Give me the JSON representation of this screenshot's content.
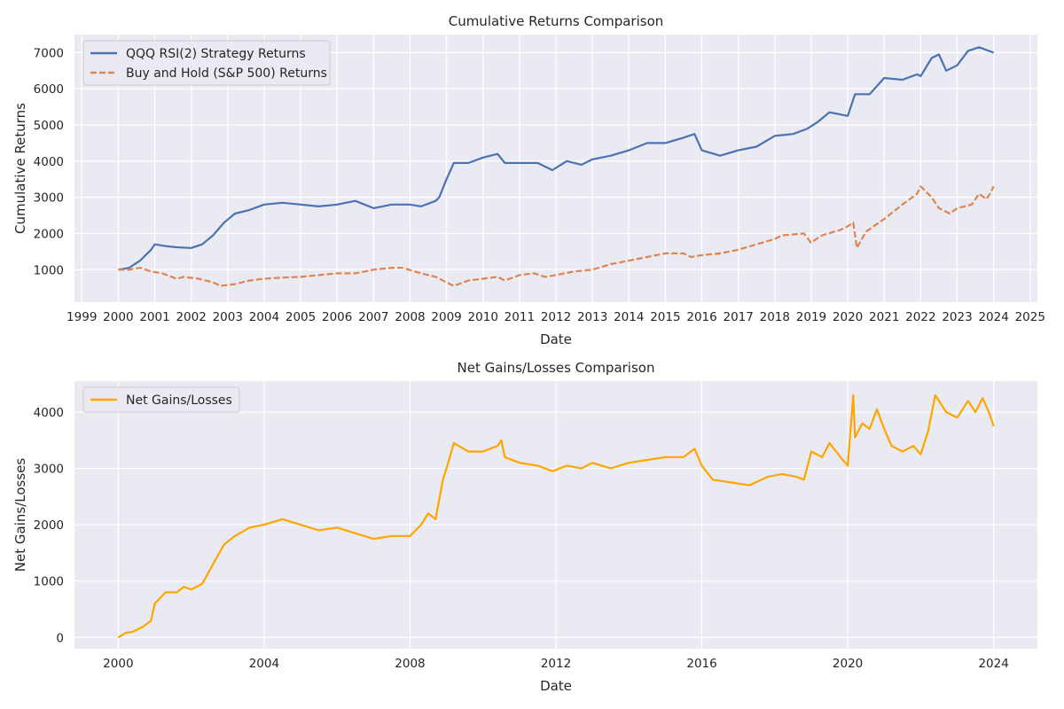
{
  "chart_data": [
    {
      "type": "line",
      "title": "Cumulative Returns Comparison",
      "xlabel": "Date",
      "ylabel": "Cumulative Returns",
      "xlim": [
        1998.8,
        2025.2
      ],
      "ylim": [
        100,
        7500
      ],
      "x_ticks": [
        1999,
        2000,
        2001,
        2002,
        2003,
        2004,
        2005,
        2006,
        2007,
        2008,
        2009,
        2010,
        2011,
        2012,
        2013,
        2014,
        2015,
        2016,
        2017,
        2018,
        2019,
        2020,
        2021,
        2022,
        2023,
        2024,
        2025
      ],
      "y_ticks": [
        1000,
        2000,
        3000,
        4000,
        5000,
        6000,
        7000
      ],
      "grid": true,
      "legend": "top-left",
      "series": [
        {
          "name": "QQQ RSI(2) Strategy Returns",
          "color": "#4c72b0",
          "style": "solid",
          "x": [
            2000.0,
            2000.3,
            2000.6,
            2000.9,
            2001.0,
            2001.3,
            2001.6,
            2002.0,
            2002.3,
            2002.6,
            2002.9,
            2003.2,
            2003.6,
            2004.0,
            2004.5,
            2005.0,
            2005.5,
            2006.0,
            2006.5,
            2007.0,
            2007.5,
            2008.0,
            2008.3,
            2008.7,
            2008.8,
            2009.0,
            2009.2,
            2009.6,
            2010.0,
            2010.4,
            2010.6,
            2011.0,
            2011.5,
            2011.9,
            2012.3,
            2012.7,
            2013.0,
            2013.5,
            2014.0,
            2014.5,
            2015.0,
            2015.5,
            2015.8,
            2016.0,
            2016.5,
            2017.0,
            2017.5,
            2018.0,
            2018.5,
            2018.9,
            2019.2,
            2019.5,
            2020.0,
            2020.2,
            2020.6,
            2021.0,
            2021.5,
            2021.9,
            2022.0,
            2022.3,
            2022.5,
            2022.7,
            2023.0,
            2023.3,
            2023.6,
            2024.0
          ],
          "y": [
            1000,
            1050,
            1250,
            1550,
            1700,
            1650,
            1620,
            1600,
            1700,
            1950,
            2300,
            2550,
            2650,
            2800,
            2850,
            2800,
            2750,
            2800,
            2900,
            2700,
            2800,
            2800,
            2750,
            2900,
            3000,
            3500,
            3950,
            3950,
            4100,
            4200,
            3950,
            3950,
            3950,
            3750,
            4000,
            3900,
            4050,
            4150,
            4300,
            4500,
            4500,
            4650,
            4750,
            4300,
            4150,
            4300,
            4400,
            4700,
            4750,
            4900,
            5100,
            5350,
            5250,
            5850,
            5850,
            6300,
            6250,
            6400,
            6350,
            6850,
            6950,
            6500,
            6650,
            7050,
            7150,
            7000
          ]
        },
        {
          "name": "Buy and Hold (S&P 500) Returns",
          "color": "#dd8452",
          "style": "dashed",
          "x": [
            2000.0,
            2000.3,
            2000.6,
            2000.9,
            2001.2,
            2001.6,
            2001.8,
            2002.2,
            2002.6,
            2002.8,
            2003.2,
            2003.6,
            2004.0,
            2004.5,
            2005.0,
            2005.5,
            2006.0,
            2006.5,
            2007.0,
            2007.5,
            2007.8,
            2008.3,
            2008.7,
            2009.0,
            2009.2,
            2009.6,
            2010.0,
            2010.4,
            2010.6,
            2011.0,
            2011.4,
            2011.7,
            2012.0,
            2012.5,
            2013.0,
            2013.5,
            2014.0,
            2014.5,
            2015.0,
            2015.5,
            2015.7,
            2016.0,
            2016.5,
            2017.0,
            2017.5,
            2018.0,
            2018.2,
            2018.8,
            2018.99,
            2019.3,
            2019.8,
            2020.0,
            2020.15,
            2020.25,
            2020.5,
            2021.0,
            2021.5,
            2021.9,
            2022.0,
            2022.3,
            2022.5,
            2022.8,
            2023.0,
            2023.4,
            2023.6,
            2023.8,
            2023.9,
            2024.0
          ],
          "y": [
            1000,
            1000,
            1050,
            950,
            900,
            750,
            800,
            750,
            650,
            550,
            600,
            700,
            750,
            780,
            800,
            850,
            900,
            900,
            1000,
            1050,
            1050,
            900,
            800,
            650,
            550,
            700,
            750,
            800,
            700,
            850,
            900,
            800,
            850,
            950,
            1000,
            1150,
            1250,
            1350,
            1450,
            1450,
            1350,
            1400,
            1450,
            1550,
            1700,
            1850,
            1950,
            2000,
            1750,
            1950,
            2100,
            2200,
            2300,
            1600,
            2050,
            2400,
            2800,
            3100,
            3300,
            3000,
            2700,
            2550,
            2700,
            2800,
            3100,
            2950,
            3100,
            3300
          ]
        }
      ]
    },
    {
      "type": "line",
      "title": "Net Gains/Losses Comparison",
      "xlabel": "Date",
      "ylabel": "Net Gains/Losses",
      "xlim": [
        1998.8,
        2025.2
      ],
      "ylim": [
        -200,
        4550
      ],
      "x_ticks": [
        2000,
        2004,
        2008,
        2012,
        2016,
        2020,
        2024
      ],
      "y_ticks": [
        0,
        1000,
        2000,
        3000,
        4000
      ],
      "grid": true,
      "legend": "top-left",
      "series": [
        {
          "name": "Net Gains/Losses",
          "color": "#ffa500",
          "style": "solid",
          "x": [
            2000.0,
            2000.2,
            2000.4,
            2000.7,
            2000.9,
            2001.0,
            2001.3,
            2001.6,
            2001.8,
            2002.0,
            2002.3,
            2002.6,
            2002.9,
            2003.2,
            2003.6,
            2004.0,
            2004.5,
            2005.0,
            2005.5,
            2006.0,
            2006.5,
            2007.0,
            2007.5,
            2008.0,
            2008.3,
            2008.5,
            2008.7,
            2008.9,
            2009.0,
            2009.2,
            2009.6,
            2010.0,
            2010.4,
            2010.5,
            2010.6,
            2011.0,
            2011.5,
            2011.9,
            2012.3,
            2012.7,
            2013.0,
            2013.5,
            2014.0,
            2014.5,
            2015.0,
            2015.5,
            2015.8,
            2016.0,
            2016.3,
            2016.8,
            2017.3,
            2017.8,
            2018.2,
            2018.6,
            2018.8,
            2019.0,
            2019.3,
            2019.5,
            2019.8,
            2020.0,
            2020.15,
            2020.2,
            2020.4,
            2020.6,
            2020.8,
            2021.0,
            2021.2,
            2021.5,
            2021.8,
            2022.0,
            2022.2,
            2022.4,
            2022.7,
            2023.0,
            2023.3,
            2023.5,
            2023.7,
            2023.9,
            2024.0
          ],
          "y": [
            0,
            80,
            100,
            200,
            300,
            600,
            800,
            800,
            900,
            850,
            950,
            1300,
            1650,
            1800,
            1950,
            2000,
            2100,
            2000,
            1900,
            1950,
            1850,
            1750,
            1800,
            1800,
            2000,
            2200,
            2100,
            2800,
            3000,
            3450,
            3300,
            3300,
            3400,
            3500,
            3200,
            3100,
            3050,
            2950,
            3050,
            3000,
            3100,
            3000,
            3100,
            3150,
            3200,
            3200,
            3350,
            3050,
            2800,
            2750,
            2700,
            2850,
            2900,
            2850,
            2800,
            3300,
            3200,
            3450,
            3200,
            3050,
            4300,
            3550,
            3800,
            3700,
            4050,
            3700,
            3400,
            3300,
            3400,
            3250,
            3650,
            4300,
            4000,
            3900,
            4200,
            4000,
            4250,
            3950,
            3750
          ]
        }
      ]
    }
  ]
}
